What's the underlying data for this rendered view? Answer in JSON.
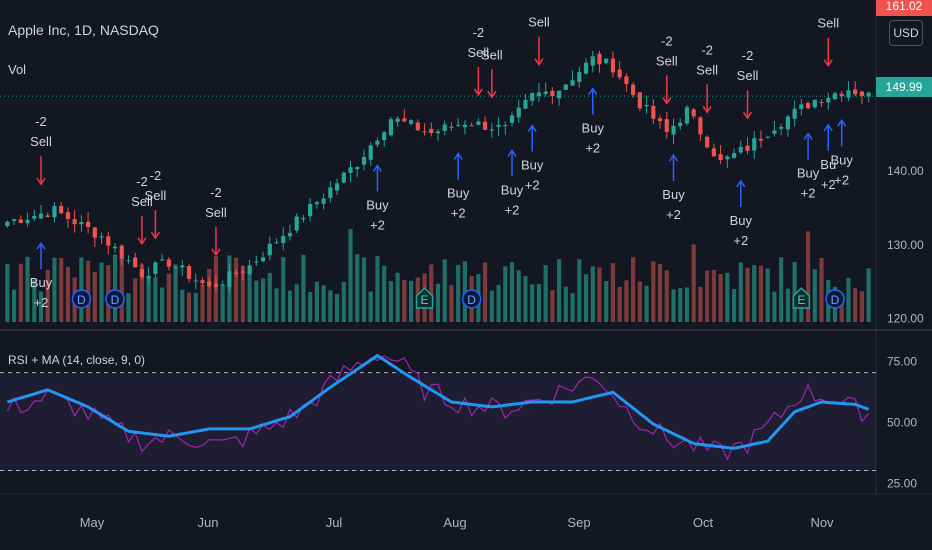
{
  "header": {
    "title": "Apple Inc, 1D, NASDAQ",
    "vol_label": "Vol",
    "currency": "USD",
    "rsi_label": "RSI + MA (14, close, 9, 0)"
  },
  "price_tags": {
    "last": "149.99",
    "top": "161.02"
  },
  "colors": {
    "bg": "#131722",
    "up": "#26a69a",
    "down": "#ef5350",
    "vol_up": "#1f6e68",
    "vol_down": "#7d3a3a",
    "rsi": "#9c27b0",
    "rsi_ma": "#2196f3",
    "buy": "#2962ff",
    "sell": "#f23645"
  },
  "chart_data": [
    {
      "type": "candlestick",
      "title": "Apple Inc, 1D, NASDAQ",
      "x_axis": {
        "ticks": [
          "May",
          "Jun",
          "Jul",
          "Aug",
          "Sep",
          "Oct",
          "Nov"
        ]
      },
      "y_axis": {
        "ticks": [
          "120.00",
          "130.00",
          "140.00"
        ],
        "range": [
          119,
          163
        ],
        "position": "right"
      },
      "last_price": 149.99,
      "anchors": [
        {
          "day": 0,
          "close": 133
        },
        {
          "day": 7,
          "close": 134.5
        },
        {
          "day": 14,
          "close": 131
        },
        {
          "day": 20,
          "close": 126
        },
        {
          "day": 24,
          "close": 127.5
        },
        {
          "day": 30,
          "close": 124
        },
        {
          "day": 36,
          "close": 127
        },
        {
          "day": 43,
          "close": 133
        },
        {
          "day": 52,
          "close": 141
        },
        {
          "day": 57,
          "close": 147
        },
        {
          "day": 63,
          "close": 145
        },
        {
          "day": 68,
          "close": 146.5
        },
        {
          "day": 74,
          "close": 145.5
        },
        {
          "day": 78,
          "close": 150
        },
        {
          "day": 82,
          "close": 151
        },
        {
          "day": 87,
          "close": 155
        },
        {
          "day": 90,
          "close": 154
        },
        {
          "day": 94,
          "close": 149
        },
        {
          "day": 98,
          "close": 145
        },
        {
          "day": 101,
          "close": 148
        },
        {
          "day": 106,
          "close": 141
        },
        {
          "day": 110,
          "close": 143
        },
        {
          "day": 114,
          "close": 146
        },
        {
          "day": 120,
          "close": 149.5
        },
        {
          "day": 125,
          "close": 151
        },
        {
          "day": 128,
          "close": 149.99
        }
      ],
      "signals": [
        {
          "day": 5,
          "kind": "sell",
          "label1": "-2",
          "label2": "Sell"
        },
        {
          "day": 5,
          "kind": "buy",
          "label1": "Buy",
          "label2": "+2"
        },
        {
          "day": 20,
          "kind": "sell",
          "label1": "-2",
          "label2": "Sell"
        },
        {
          "day": 22,
          "kind": "sell",
          "label1": "-2",
          "label2": "Sell"
        },
        {
          "day": 31,
          "kind": "sell",
          "label1": "-2",
          "label2": "Sell"
        },
        {
          "day": 55,
          "kind": "buy",
          "label1": "Buy",
          "label2": "+2"
        },
        {
          "day": 70,
          "kind": "sell",
          "label1": "-2",
          "label2": "Sell"
        },
        {
          "day": 72,
          "kind": "sell",
          "label1": "",
          "label2": "Sell"
        },
        {
          "day": 67,
          "kind": "buy",
          "label1": "Buy",
          "label2": "+2"
        },
        {
          "day": 75,
          "kind": "buy",
          "label1": "Buy",
          "label2": "+2"
        },
        {
          "day": 78,
          "kind": "buy",
          "label1": "Buy",
          "label2": "+2"
        },
        {
          "day": 79,
          "kind": "sell",
          "label1": "",
          "label2": "Sell"
        },
        {
          "day": 87,
          "kind": "buy",
          "label1": "Buy",
          "label2": "+2"
        },
        {
          "day": 98,
          "kind": "sell",
          "label1": "-2",
          "label2": "Sell"
        },
        {
          "day": 99,
          "kind": "buy",
          "label1": "Buy",
          "label2": "+2"
        },
        {
          "day": 104,
          "kind": "sell",
          "label1": "-2",
          "label2": "Sell"
        },
        {
          "day": 109,
          "kind": "buy",
          "label1": "Buy",
          "label2": "+2"
        },
        {
          "day": 110,
          "kind": "sell",
          "label1": "-2",
          "label2": "Sell"
        },
        {
          "day": 119,
          "kind": "buy",
          "label1": "Buy",
          "label2": "+2"
        },
        {
          "day": 122,
          "kind": "sell",
          "label1": "",
          "label2": "Sell"
        },
        {
          "day": 122,
          "kind": "buy",
          "label1": "Bu",
          "label2": "+2"
        },
        {
          "day": 124,
          "kind": "buy",
          "label1": "Buy",
          "label2": "+2"
        }
      ],
      "events": [
        {
          "day": 11,
          "label": "D",
          "kind": "dividend"
        },
        {
          "day": 16,
          "label": "D",
          "kind": "dividend"
        },
        {
          "day": 62,
          "label": "E",
          "kind": "earnings"
        },
        {
          "day": 69,
          "label": "D",
          "kind": "dividend"
        },
        {
          "day": 118,
          "label": "E",
          "kind": "earnings"
        },
        {
          "day": 123,
          "label": "D",
          "kind": "dividend"
        }
      ]
    },
    {
      "type": "line",
      "title": "RSI + MA (14, close, 9, 0)",
      "y_axis": {
        "ticks": [
          "75.00",
          "50.00",
          "25.00"
        ],
        "range": [
          22,
          85
        ],
        "bands": [
          70,
          30
        ]
      },
      "series": [
        {
          "name": "RSI",
          "anchors": [
            {
              "day": 0,
              "value": 55
            },
            {
              "day": 6,
              "value": 60
            },
            {
              "day": 10,
              "value": 56
            },
            {
              "day": 16,
              "value": 47
            },
            {
              "day": 20,
              "value": 42
            },
            {
              "day": 26,
              "value": 44
            },
            {
              "day": 32,
              "value": 40
            },
            {
              "day": 38,
              "value": 46
            },
            {
              "day": 44,
              "value": 55
            },
            {
              "day": 50,
              "value": 70
            },
            {
              "day": 55,
              "value": 78
            },
            {
              "day": 58,
              "value": 75
            },
            {
              "day": 62,
              "value": 63
            },
            {
              "day": 68,
              "value": 57
            },
            {
              "day": 74,
              "value": 55
            },
            {
              "day": 80,
              "value": 60
            },
            {
              "day": 85,
              "value": 66
            },
            {
              "day": 88,
              "value": 68
            },
            {
              "day": 92,
              "value": 55
            },
            {
              "day": 98,
              "value": 43
            },
            {
              "day": 102,
              "value": 40
            },
            {
              "day": 106,
              "value": 37
            },
            {
              "day": 110,
              "value": 41
            },
            {
              "day": 114,
              "value": 50
            },
            {
              "day": 118,
              "value": 62
            },
            {
              "day": 122,
              "value": 60
            },
            {
              "day": 126,
              "value": 55
            },
            {
              "day": 128,
              "value": 54
            }
          ]
        },
        {
          "name": "RSI-based MA",
          "anchors": [
            {
              "day": 0,
              "value": 58
            },
            {
              "day": 6,
              "value": 63
            },
            {
              "day": 12,
              "value": 56
            },
            {
              "day": 18,
              "value": 46
            },
            {
              "day": 24,
              "value": 44
            },
            {
              "day": 30,
              "value": 47
            },
            {
              "day": 36,
              "value": 47
            },
            {
              "day": 42,
              "value": 52
            },
            {
              "day": 48,
              "value": 64
            },
            {
              "day": 55,
              "value": 77
            },
            {
              "day": 60,
              "value": 68
            },
            {
              "day": 66,
              "value": 58
            },
            {
              "day": 72,
              "value": 56
            },
            {
              "day": 78,
              "value": 58
            },
            {
              "day": 84,
              "value": 58
            },
            {
              "day": 90,
              "value": 62
            },
            {
              "day": 96,
              "value": 49
            },
            {
              "day": 102,
              "value": 41
            },
            {
              "day": 108,
              "value": 39
            },
            {
              "day": 113,
              "value": 42
            },
            {
              "day": 117,
              "value": 54
            },
            {
              "day": 121,
              "value": 58
            },
            {
              "day": 126,
              "value": 57
            },
            {
              "day": 128,
              "value": 55
            }
          ]
        }
      ]
    }
  ]
}
